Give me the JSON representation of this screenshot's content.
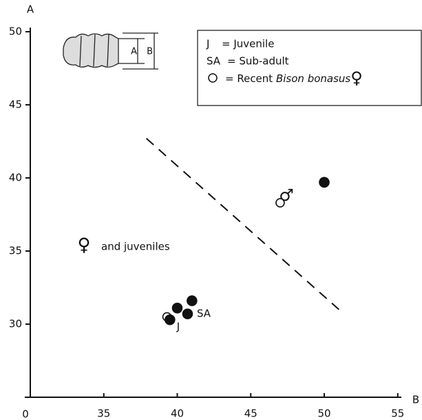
{
  "chart_data": {
    "type": "scatter",
    "x_label": "B",
    "y_label": "A",
    "origin_label": "0",
    "xlim": [
      30,
      55.5
    ],
    "ylim": [
      25,
      50.5
    ],
    "xticks": [
      35,
      40,
      45,
      50,
      55
    ],
    "yticks": [
      30,
      35,
      40,
      45,
      50
    ],
    "series": [
      {
        "name": "Bison bonasus",
        "marker": "open",
        "color": "#111111",
        "x": [
          47.0,
          39.3
        ],
        "y": [
          38.3,
          30.5
        ]
      },
      {
        "marker": "filled",
        "color": "#111111",
        "x": [
          50.0,
          40.0,
          41.0,
          40.7,
          39.5
        ],
        "y": [
          39.7,
          31.1,
          31.6,
          30.7,
          30.3
        ]
      }
    ],
    "divider": {
      "x": [
        37.9,
        51.0
      ],
      "y": [
        42.7,
        31.0
      ]
    },
    "legend": {
      "entries": [
        {
          "key": "J",
          "text": "= Juvenile"
        },
        {
          "key": "SA",
          "text": "= Sub-adult"
        }
      ],
      "series_prefix": "= Recent",
      "series_suffix": "♀"
    },
    "annotations": {
      "female_symbol": "♀",
      "female_text": "and juveniles",
      "male_symbol": "♂",
      "juvenile": "J",
      "subadult": "SA"
    },
    "icon_labels": [
      "A",
      "B"
    ]
  }
}
